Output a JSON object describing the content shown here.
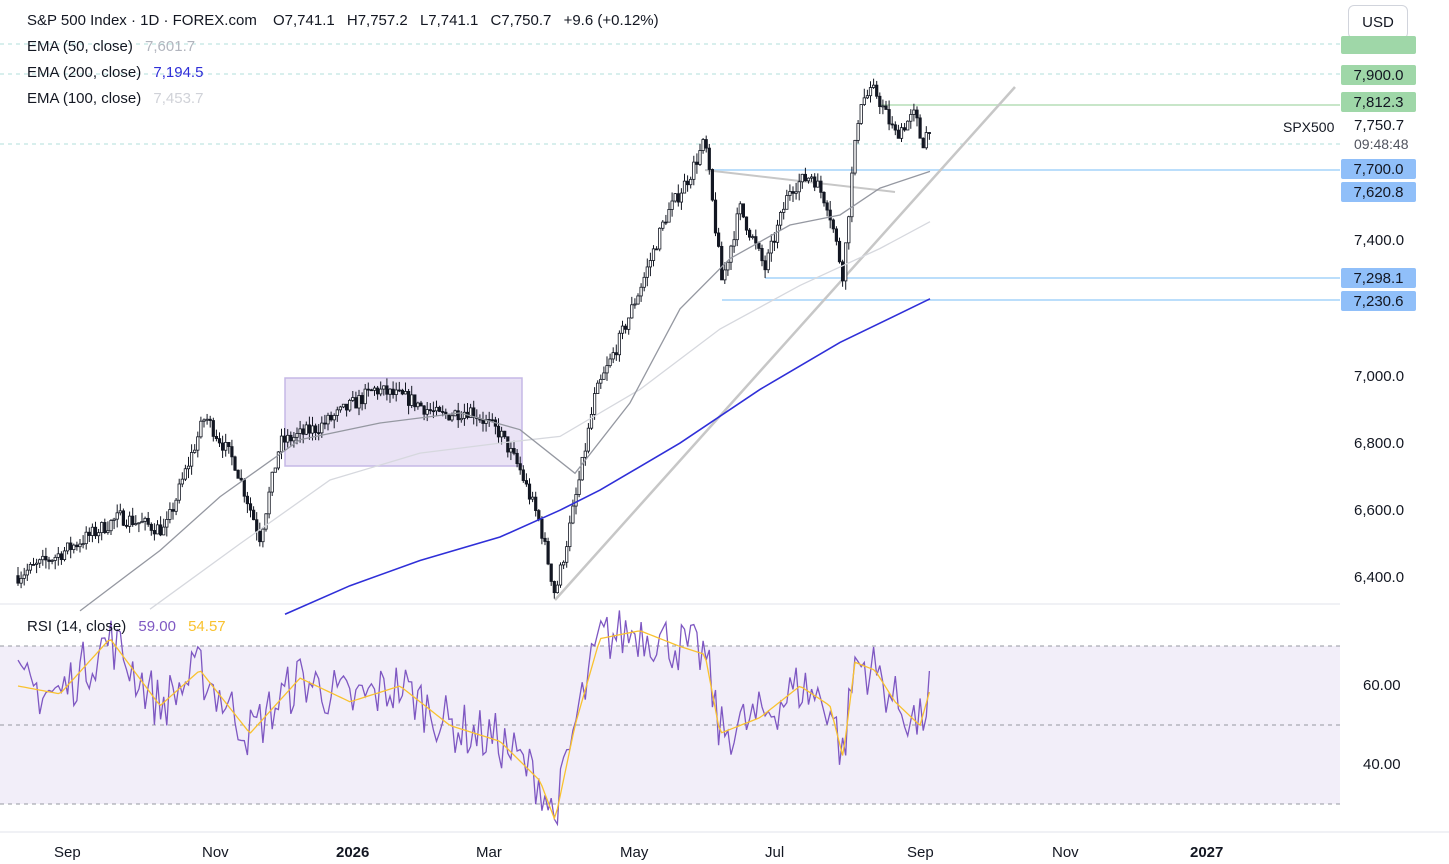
{
  "header": {
    "title": "S&P 500 Index · 1D · FOREX.com",
    "open": "O7,741.1",
    "high": "H7,757.2",
    "low": "L7,741.1",
    "close": "C7,750.7",
    "change": "+9.6 (+0.12%)"
  },
  "currency_button": "USD",
  "indicators": {
    "ema50": {
      "label": "EMA (50, close)",
      "value": "7,601.7",
      "color": "#b2b5be"
    },
    "ema200": {
      "label": "EMA (200, close)",
      "value": "7,194.5",
      "color": "#2f2fd8"
    },
    "ema100": {
      "label": "EMA (100, close)",
      "value": "7,453.7",
      "color": "#d6d8de"
    },
    "rsi": {
      "label": "RSI (14, close)",
      "value": "59.00",
      "ma_value": "54.57",
      "color": "#7e57c2",
      "ma_color": "#f9c22f"
    }
  },
  "price_tags": {
    "tag1": "7,900.0",
    "tag2": "7,812.3",
    "tag3": "7,700.0",
    "tag4": "7,620.8",
    "tag5": "7,298.1",
    "tag6": "7,230.6"
  },
  "symbol_label": "SPX500",
  "last_price": "7,750.7",
  "countdown": "09:48:48",
  "price_axis_ticks": [
    "7,400.0",
    "7,000.0",
    "6,800.0",
    "6,600.0",
    "6,400.0"
  ],
  "rsi_axis_ticks": [
    "60.00",
    "40.00"
  ],
  "time_axis_ticks": [
    "Sep",
    "Nov",
    "2026",
    "Mar",
    "May",
    "Jul",
    "Sep",
    "Nov",
    "2027"
  ],
  "chart_data": {
    "type": "candlestick",
    "title": "S&P 500 Index · 1D · FOREX.com",
    "y_range": [
      6300,
      8000
    ],
    "x_range_months": [
      "Sep 2025",
      "Jan 2027"
    ],
    "grid": false,
    "key_levels": [
      7900.0,
      7812.3,
      7700.0,
      7620.8,
      7298.1,
      7230.6
    ],
    "last": {
      "open": 7741.1,
      "high": 7757.2,
      "low": 7741.1,
      "close": 7750.7,
      "change": 9.6,
      "change_pct": 0.12
    },
    "ema": {
      "ema50": 7601.7,
      "ema100": 7453.7,
      "ema200": 7194.5
    },
    "rsi": {
      "period": 14,
      "value": 59.0,
      "ma": 54.57,
      "bands": [
        30,
        70
      ],
      "y_range": [
        25,
        80
      ]
    }
  }
}
